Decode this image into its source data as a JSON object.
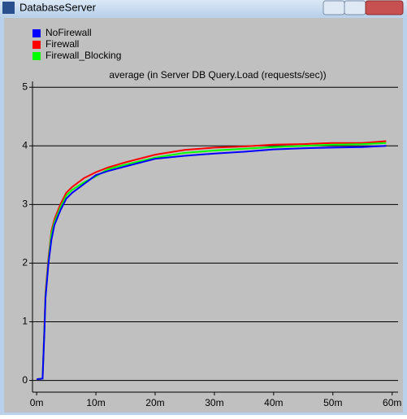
{
  "window_title": "DatabaseServer",
  "chart_data": {
    "type": "line",
    "title": "average (in Server DB Query.Load (requests/sec))",
    "x": [
      0,
      1,
      1.3,
      1.5,
      2,
      2.5,
      3,
      4,
      5,
      6,
      8,
      10,
      12,
      15,
      20,
      25,
      30,
      35,
      40,
      45,
      50,
      55,
      59
    ],
    "series": [
      {
        "name": "NoFirewall",
        "color": "#0000ff",
        "values": [
          0.02,
          0.03,
          0.8,
          1.4,
          2.0,
          2.4,
          2.65,
          2.9,
          3.1,
          3.2,
          3.35,
          3.5,
          3.57,
          3.65,
          3.78,
          3.83,
          3.87,
          3.9,
          3.94,
          3.96,
          3.97,
          3.98,
          4.0
        ]
      },
      {
        "name": "Firewall",
        "color": "#ff0000",
        "values": [
          0.02,
          0.03,
          0.9,
          1.5,
          2.1,
          2.55,
          2.75,
          3.0,
          3.2,
          3.3,
          3.45,
          3.55,
          3.63,
          3.72,
          3.85,
          3.93,
          3.97,
          3.99,
          4.02,
          4.03,
          4.05,
          4.05,
          4.08
        ]
      },
      {
        "name": "Firewall_Blocking",
        "color": "#00ff00",
        "values": [
          0.02,
          0.03,
          0.85,
          1.45,
          2.05,
          2.5,
          2.7,
          2.95,
          3.15,
          3.25,
          3.38,
          3.48,
          3.6,
          3.68,
          3.8,
          3.88,
          3.92,
          3.95,
          3.98,
          4.0,
          4.02,
          4.03,
          4.05
        ]
      }
    ],
    "xlim": [
      -0.7,
      61
    ],
    "ylim": [
      -0.2,
      5.1
    ],
    "xticks": [
      {
        "value": 0,
        "label": "0m"
      },
      {
        "value": 10,
        "label": "10m"
      },
      {
        "value": 20,
        "label": "20m"
      },
      {
        "value": 30,
        "label": "30m"
      },
      {
        "value": 40,
        "label": "40m"
      },
      {
        "value": 50,
        "label": "50m"
      },
      {
        "value": 60,
        "label": "60m"
      }
    ],
    "yticks": [
      0,
      1,
      2,
      3,
      4,
      5
    ],
    "grid": true
  }
}
